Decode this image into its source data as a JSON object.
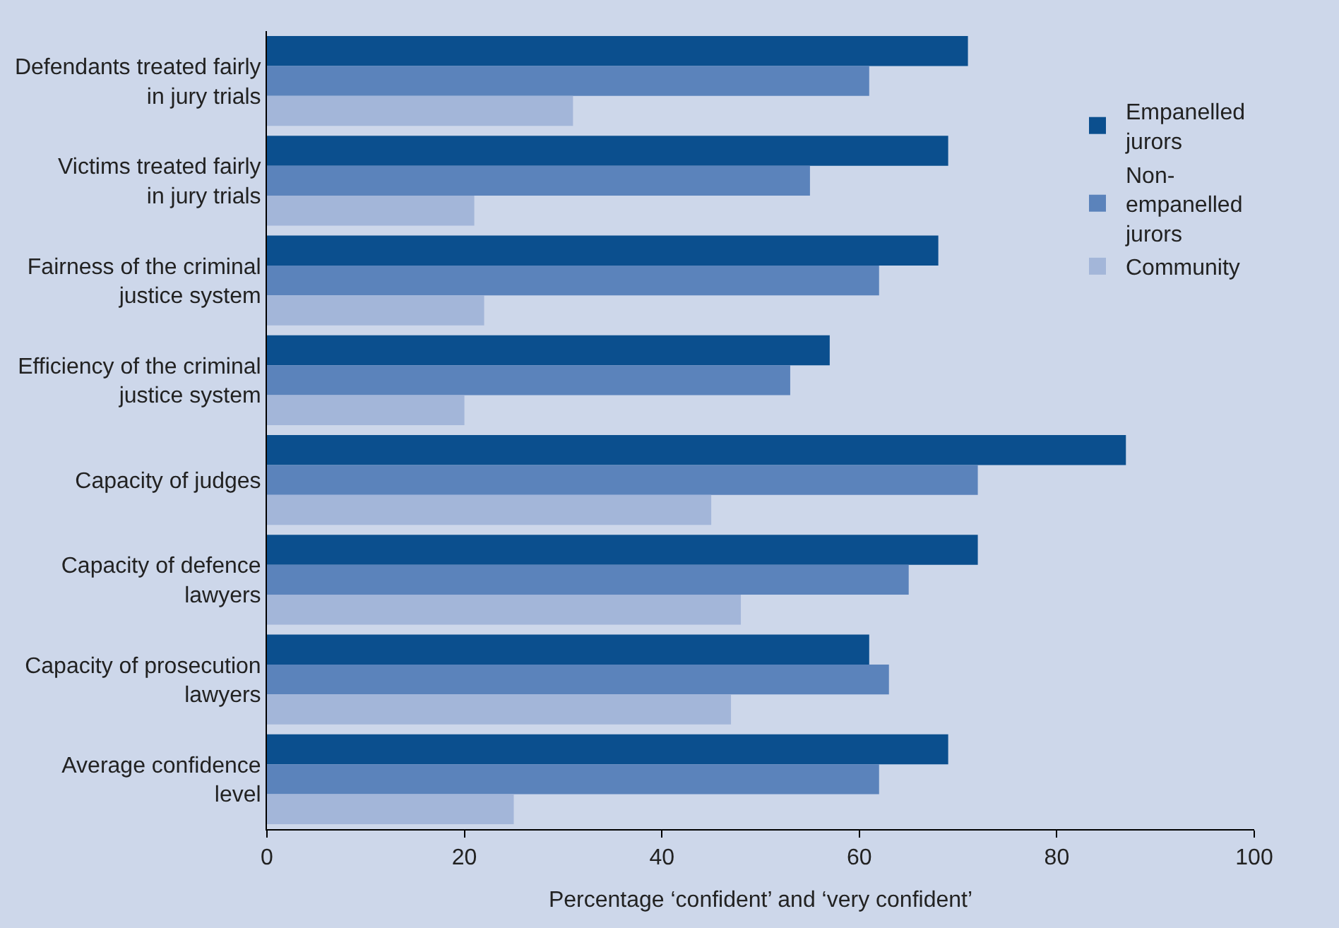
{
  "chart_data": {
    "type": "bar",
    "orientation": "horizontal",
    "xlabel": "Percentage ‘confident’ and ‘very confident’",
    "categories": [
      "Defendants treated fairly\nin jury trials",
      "Victims treated fairly\nin jury trials",
      "Fairness of the criminal\njustice system",
      "Efficiency of the criminal\njustice system",
      "Capacity of judges",
      "Capacity of defence\nlawyers",
      "Capacity of prosecution\nlawyers",
      "Average confidence\nlevel"
    ],
    "series": [
      {
        "name": "Empanelled\njurors",
        "color": "#0b4f8e",
        "values": [
          71,
          69,
          68,
          57,
          87,
          72,
          61,
          69
        ]
      },
      {
        "name": "Non-\nempanelled\njurors",
        "color": "#5b83bb",
        "values": [
          61,
          55,
          62,
          53,
          72,
          65,
          63,
          62
        ]
      },
      {
        "name": "Community",
        "color": "#a3b6d9",
        "values": [
          31,
          21,
          22,
          20,
          45,
          48,
          47,
          25
        ]
      }
    ],
    "xlim": [
      0,
      100
    ],
    "xticks": [
      0,
      20,
      40,
      60,
      80,
      100
    ],
    "grid": false,
    "legend": "top right"
  }
}
